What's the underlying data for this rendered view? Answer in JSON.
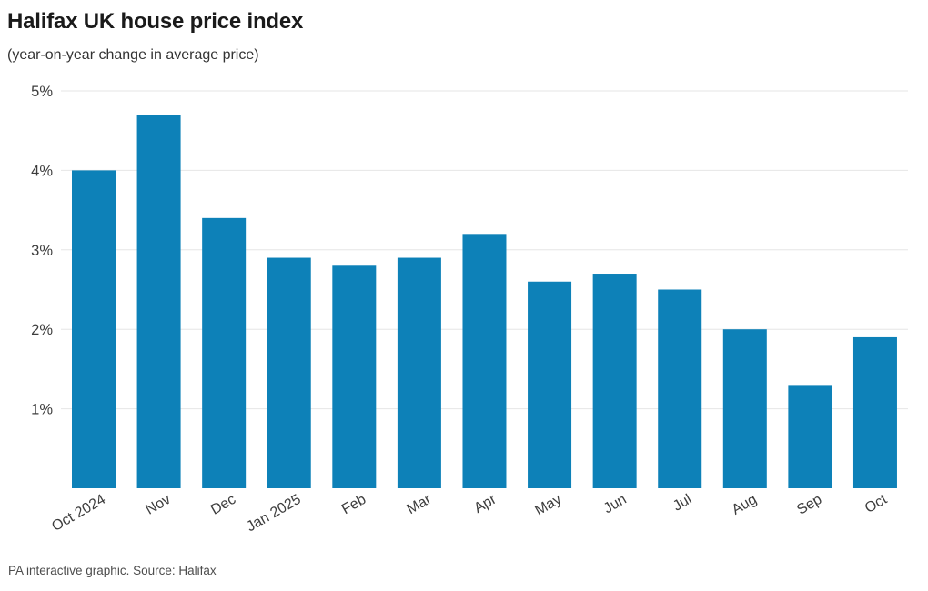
{
  "header": {
    "title": "Halifax UK house price index",
    "subtitle": "(year-on-year change in average price)"
  },
  "footer": {
    "credit_prefix": "PA interactive graphic. Source: ",
    "source_label": "Halifax"
  },
  "colors": {
    "bar": "#0d81b8",
    "gridline": "#e6e6e6",
    "axis_text": "#3d3d3d",
    "title_text": "#1a1a1a",
    "footer_text": "#4d4d4d"
  },
  "chart_data": {
    "type": "bar",
    "title": "Halifax UK house price index",
    "subtitle": "(year-on-year change in average price)",
    "categories": [
      "Oct 2024",
      "Nov",
      "Dec",
      "Jan 2025",
      "Feb",
      "Mar",
      "Apr",
      "May",
      "Jun",
      "Jul",
      "Aug",
      "Sep",
      "Oct"
    ],
    "values": [
      4.0,
      4.7,
      3.4,
      2.9,
      2.8,
      2.9,
      3.2,
      2.6,
      2.7,
      2.5,
      2.0,
      1.3,
      1.9
    ],
    "xlabel": "",
    "ylabel": "",
    "ylim": [
      0,
      5
    ],
    "yticks": [
      1,
      2,
      3,
      4,
      5
    ],
    "ytick_labels": [
      "1%",
      "2%",
      "3%",
      "4%",
      "5%"
    ],
    "grid": true,
    "legend": "none",
    "x_label_rotation_deg": -30
  }
}
